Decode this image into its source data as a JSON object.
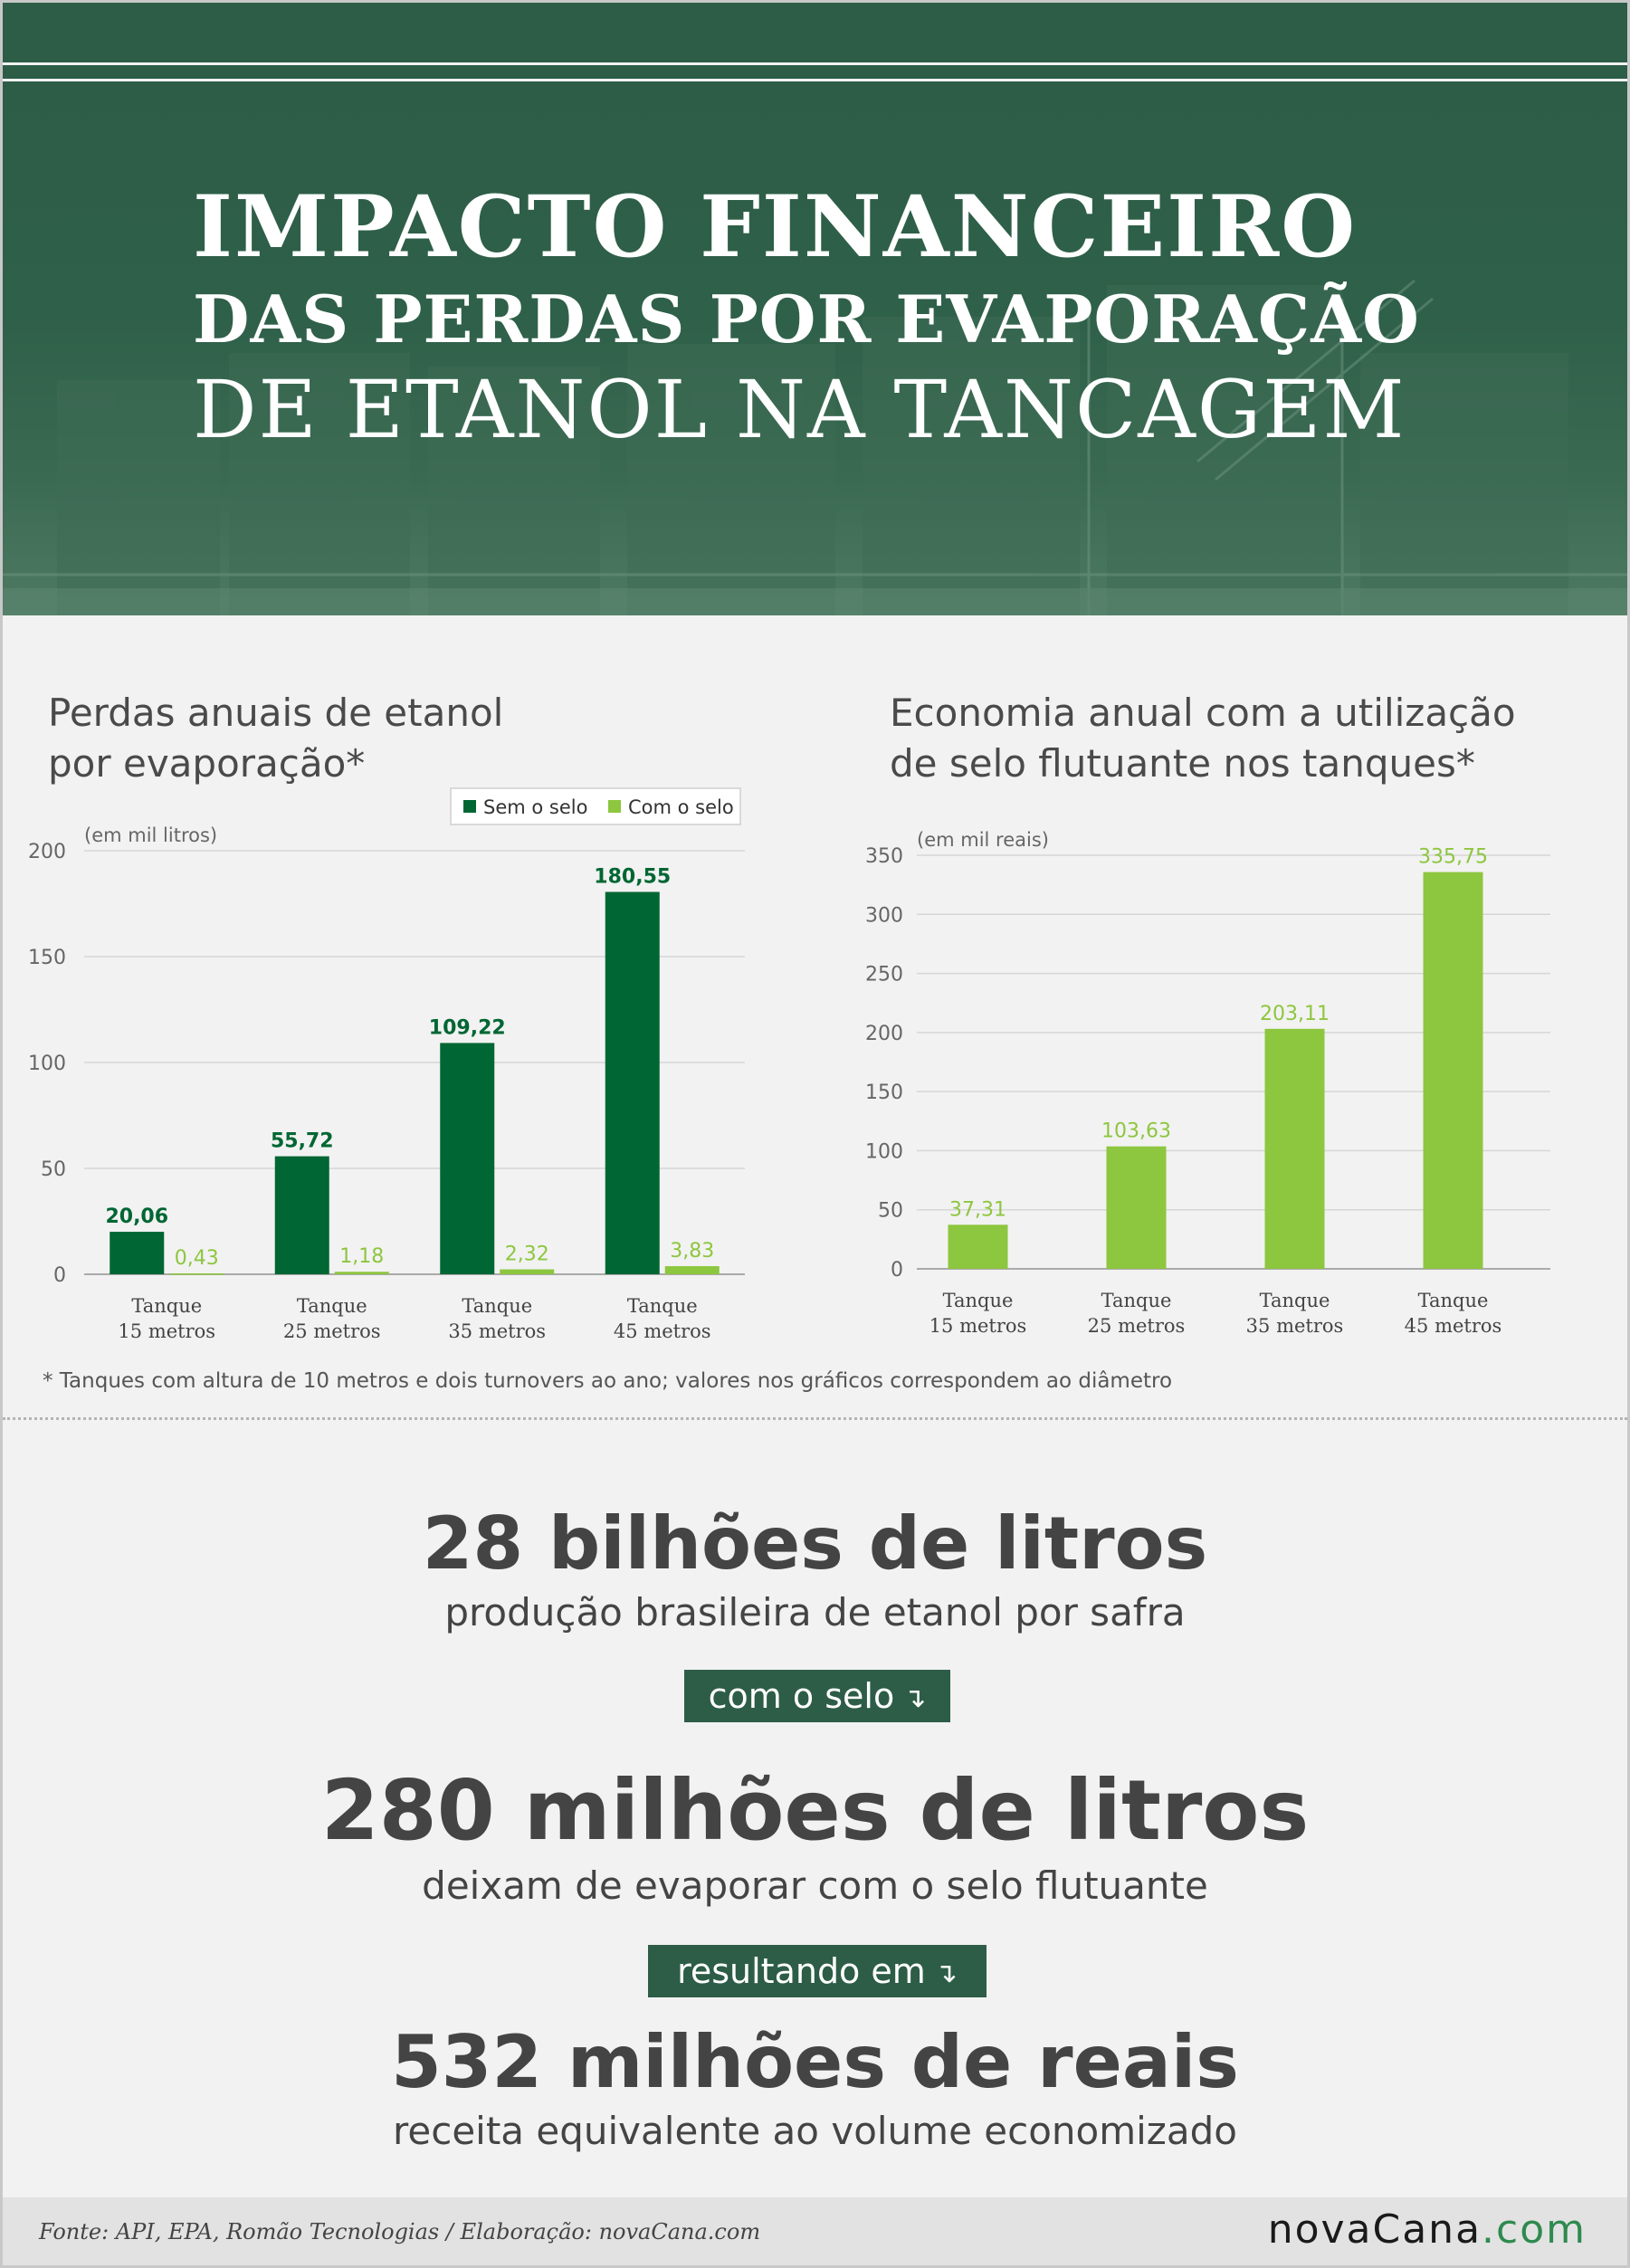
{
  "header": {
    "title_line1": "IMPACTO FINANCEIRO",
    "title_line2": "DAS PERDAS POR EVAPORAÇÃO",
    "title_line3": "DE ETANOL NA TANCAGEM"
  },
  "chart_data": [
    {
      "type": "bar",
      "title_line1": "Perdas anuais de etanol",
      "title_line2": "por evaporação*",
      "ylabel": "(em mil litros)",
      "ylim": [
        0,
        200
      ],
      "yticks": [
        0,
        50,
        100,
        150,
        200
      ],
      "categories": [
        {
          "line1": "Tanque",
          "line2": "15 metros"
        },
        {
          "line1": "Tanque",
          "line2": "25 metros"
        },
        {
          "line1": "Tanque",
          "line2": "35 metros"
        },
        {
          "line1": "Tanque",
          "line2": "45 metros"
        }
      ],
      "series": [
        {
          "name": "Sem o selo",
          "color": "#006633",
          "values": [
            20.06,
            55.72,
            109.22,
            180.55
          ],
          "labels": [
            "20,06",
            "55,72",
            "109,22",
            "180,55"
          ]
        },
        {
          "name": "Com o selo",
          "color": "#8dc63f",
          "values": [
            0.43,
            1.18,
            2.32,
            3.83
          ],
          "labels": [
            "0,43",
            "1,18",
            "2,32",
            "3,83"
          ]
        }
      ],
      "legend": "top-right",
      "grid": true
    },
    {
      "type": "bar",
      "title_line1": "Economia anual com a utilização",
      "title_line2": "de selo flutuante nos tanques*",
      "ylabel": "(em mil reais)",
      "ylim": [
        0,
        350
      ],
      "yticks": [
        0,
        50,
        100,
        150,
        200,
        250,
        300,
        350
      ],
      "categories": [
        {
          "line1": "Tanque",
          "line2": "15 metros"
        },
        {
          "line1": "Tanque",
          "line2": "25 metros"
        },
        {
          "line1": "Tanque",
          "line2": "35 metros"
        },
        {
          "line1": "Tanque",
          "line2": "45 metros"
        }
      ],
      "series": [
        {
          "color": "#8dc63f",
          "values": [
            37.31,
            103.63,
            203.11,
            335.75
          ],
          "labels": [
            "37,31",
            "103,63",
            "203,11",
            "335,75"
          ]
        }
      ],
      "grid": true
    }
  ],
  "footnote": "* Tanques com altura de 10 metros e dois turnovers ao ano; valores nos gráficos correspondem ao diâmetro",
  "stats": {
    "stat1_big": "28 bilhões de litros",
    "stat1_sub": "produção brasileira de etanol por safra",
    "connector1": "com o selo",
    "stat2_big": "280 milhões de litros",
    "stat2_sub": "deixam de evaporar com o selo flutuante",
    "connector2": "resultando em",
    "stat3_big": "532 milhões de reais",
    "stat3_sub": "receita equivalente ao volume economizado"
  },
  "footer": {
    "source": "Fonte: API, EPA, Romão Tecnologias / Elaboração: novaCana.com",
    "logo_main": "novaCana",
    "logo_suffix": ".com"
  },
  "colors": {
    "header_green": "#2d5d47",
    "dark_green": "#006633",
    "light_green": "#8dc63f"
  }
}
